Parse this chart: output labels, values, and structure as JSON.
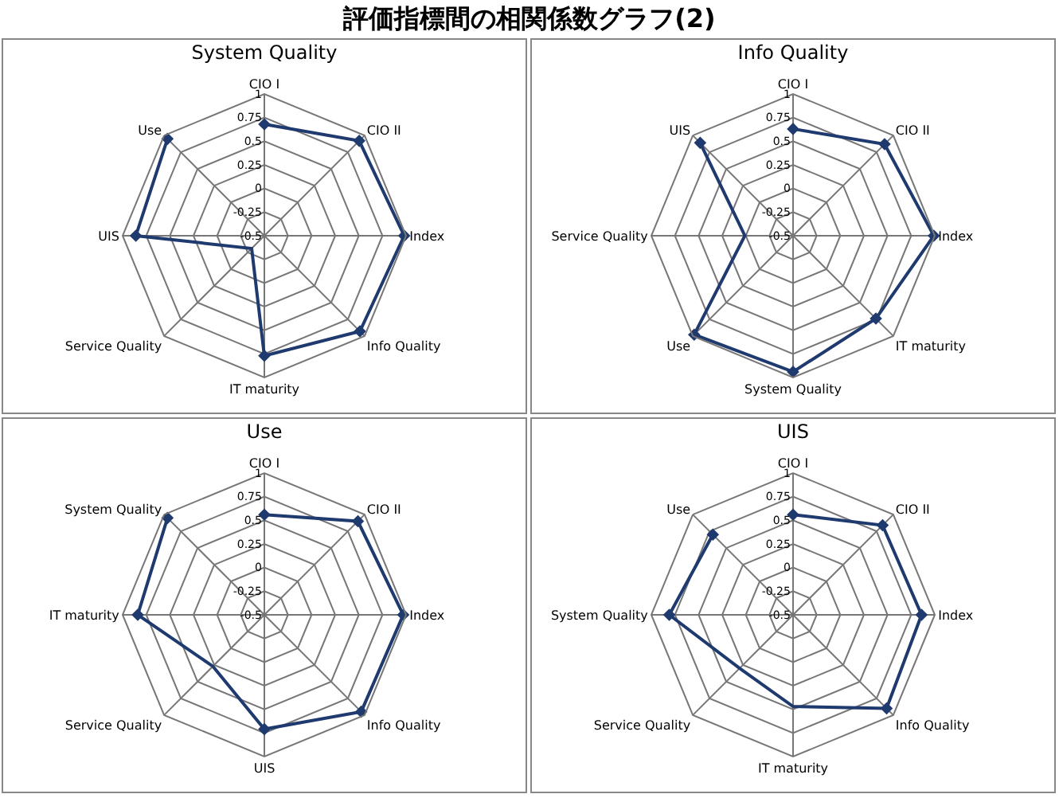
{
  "chart_data": [
    {
      "type": "radar",
      "title": "System Quality",
      "annotations": [
        "評価指標間の相関係数グラフ(2)"
      ],
      "categories": [
        "CIO I",
        "CIO II",
        "Index",
        "Info Quality",
        "IT maturity",
        "Service Quality",
        "UIS",
        "Use"
      ],
      "series": [
        {
          "color": "#1f3a6e",
          "values": [
            0.68,
            0.92,
            0.98,
            0.93,
            0.77,
            -0.31,
            0.86,
            0.95
          ]
        }
      ],
      "ylim": [
        -0.5,
        1
      ],
      "yticks": [
        -0.5,
        -0.25,
        0,
        0.25,
        0.5,
        0.75,
        1
      ],
      "grid": true,
      "marker": "diamond",
      "line_style": "solid"
    },
    {
      "type": "radar",
      "title": "Info Quality",
      "categories": [
        "CIO I",
        "CIO II",
        "Index",
        "IT maturity",
        "System Quality",
        "Use",
        "Service Quality",
        "UIS"
      ],
      "series": [
        {
          "color": "#1f3a6e",
          "values": [
            0.63,
            0.87,
            0.99,
            0.74,
            0.94,
            0.98,
            0.01,
            0.89
          ]
        }
      ],
      "ylim": [
        -0.5,
        1
      ],
      "yticks": [
        -0.5,
        -0.25,
        0,
        0.25,
        0.5,
        0.75,
        1
      ],
      "grid": true,
      "marker": "diamond",
      "line_style": "solid"
    },
    {
      "type": "radar",
      "title": "Use",
      "categories": [
        "CIO I",
        "CIO II",
        "Index",
        "Info Quality",
        "UIS",
        "Service Quality",
        "IT maturity",
        "System Quality"
      ],
      "series": [
        {
          "color": "#1f3a6e",
          "values": [
            0.56,
            0.9,
            0.97,
            0.95,
            0.71,
            0.27,
            0.84,
            0.95
          ]
        }
      ],
      "ylim": [
        -0.5,
        1
      ],
      "yticks": [
        -0.5,
        -0.25,
        0,
        0.25,
        0.5,
        0.75,
        1
      ],
      "grid": true,
      "marker": "diamond",
      "line_style": "solid"
    },
    {
      "type": "radar",
      "title": "UIS",
      "categories": [
        "CIO I",
        "CIO II",
        "Index",
        "Info Quality",
        "IT maturity",
        "Service Quality",
        "System Quality",
        "Use"
      ],
      "series": [
        {
          "color": "#1f3a6e",
          "values": [
            0.56,
            0.84,
            0.86,
            0.9,
            0.47,
            0.3,
            0.81,
            0.7
          ]
        }
      ],
      "ylim": [
        -0.5,
        1
      ],
      "yticks": [
        -0.5,
        -0.25,
        0,
        0.25,
        0.5,
        0.75,
        1
      ],
      "grid": true,
      "marker": "diamond",
      "line_style": "solid"
    }
  ]
}
